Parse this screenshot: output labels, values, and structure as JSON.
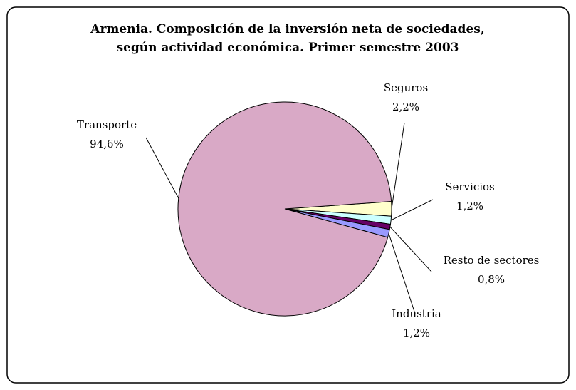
{
  "chart_data": {
    "type": "pie",
    "title": [
      "Armenia. Composición de la inversión neta de sociedades,",
      "según actividad económica. Primer semestre 2003"
    ],
    "categories": [
      "Seguros",
      "Servicios",
      "Resto de sectores",
      "Industria",
      "Transporte"
    ],
    "values": [
      2.2,
      1.2,
      0.8,
      1.2,
      94.6
    ],
    "value_labels": [
      "2,2%",
      "1,2%",
      "0,8%",
      "1,2%",
      "94,6%"
    ],
    "colors": [
      "#ffffcc",
      "#ccffff",
      "#660066",
      "#9999ff",
      "#d9a9c6"
    ]
  }
}
